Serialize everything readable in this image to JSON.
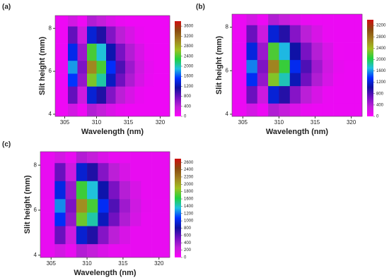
{
  "chart_data": [
    {
      "type": "heatmap",
      "panel_label": "(a)",
      "x_label": "Wavelength (nm)",
      "y_label": "Slit height (mm)",
      "xlim": [
        303.5,
        321.5
      ],
      "ylim": [
        3.9,
        8.6
      ],
      "xticks": [
        305,
        310,
        315,
        320
      ],
      "yticks": [
        4,
        6,
        8
      ],
      "x_edges": [
        303.5,
        305.5,
        307,
        308.5,
        310,
        311.5,
        313,
        314.5,
        316,
        317.5,
        319,
        320.5,
        321.5
      ],
      "y_edges": [
        3.9,
        4.5,
        5.3,
        5.9,
        6.5,
        7.3,
        8.1,
        8.6
      ],
      "z": [
        [
          100,
          270,
          105,
          450,
          360,
          225,
          135,
          100,
          100,
          100,
          100,
          100
        ],
        [
          100,
          810,
          315,
          1350,
          1080,
          675,
          405,
          250,
          135,
          100,
          100,
          100
        ],
        [
          100,
          1530,
          595,
          2550,
          2040,
          1275,
          765,
          470,
          255,
          130,
          100,
          100
        ],
        [
          120,
          1800,
          700,
          3000,
          2400,
          1500,
          900,
          550,
          300,
          150,
          100,
          100
        ],
        [
          100,
          1440,
          560,
          2400,
          1920,
          1200,
          720,
          440,
          240,
          120,
          100,
          100
        ],
        [
          100,
          810,
          315,
          1350,
          1080,
          675,
          405,
          250,
          135,
          100,
          100,
          100
        ],
        [
          100,
          270,
          105,
          450,
          360,
          225,
          135,
          100,
          100,
          100,
          100,
          100
        ]
      ],
      "clim": [
        0,
        3800
      ],
      "cticks": [
        0,
        400,
        800,
        1200,
        1600,
        2000,
        2400,
        2800,
        3200,
        3600
      ],
      "colormap": [
        "#ff00ff",
        "#c020d8",
        "#7010c0",
        "#1010a0",
        "#0030ff",
        "#20c0e0",
        "#20d040",
        "#a0c020",
        "#a08020",
        "#8a4a10",
        "#d01010"
      ]
    },
    {
      "type": "heatmap",
      "panel_label": "(b)",
      "x_label": "Wavelength (nm)",
      "y_label": "Slit height (mm)",
      "xlim": [
        303.5,
        321.5
      ],
      "ylim": [
        3.9,
        8.6
      ],
      "xticks": [
        305,
        310,
        315,
        320
      ],
      "yticks": [
        4,
        6,
        8
      ],
      "x_edges": [
        303.5,
        305.5,
        307,
        308.5,
        310,
        311.5,
        313,
        314.5,
        316,
        317.5,
        319,
        320.5,
        321.5
      ],
      "y_edges": [
        3.9,
        4.5,
        5.3,
        5.9,
        6.5,
        7.3,
        8.1,
        8.6
      ],
      "z": [
        [
          100,
          230,
          100,
          405,
          315,
          195,
          120,
          100,
          100,
          100,
          100,
          100
        ],
        [
          100,
          700,
          280,
          1215,
          945,
          585,
          360,
          215,
          115,
          100,
          100,
          100
        ],
        [
          100,
          1320,
          530,
          2300,
          1790,
          1100,
          680,
          410,
          220,
          110,
          100,
          100
        ],
        [
          110,
          1550,
          620,
          2700,
          2100,
          1300,
          800,
          480,
          260,
          130,
          100,
          100
        ],
        [
          100,
          1240,
          500,
          2160,
          1680,
          1040,
          640,
          385,
          210,
          105,
          100,
          100
        ],
        [
          100,
          700,
          280,
          1215,
          945,
          585,
          360,
          215,
          115,
          100,
          100,
          100
        ],
        [
          100,
          230,
          100,
          405,
          315,
          195,
          120,
          100,
          100,
          100,
          100,
          100
        ]
      ],
      "clim": [
        0,
        3400
      ],
      "cticks": [
        0,
        400,
        800,
        1200,
        1600,
        2000,
        2400,
        2800,
        3200
      ],
      "colormap": [
        "#ff00ff",
        "#c020d8",
        "#7010c0",
        "#1010a0",
        "#0030ff",
        "#20c0e0",
        "#20d040",
        "#a0c020",
        "#a08020",
        "#8a4a10",
        "#d01010"
      ]
    },
    {
      "type": "heatmap",
      "panel_label": "(c)",
      "x_label": "Wavelength (nm)",
      "y_label": "Slit height (mm)",
      "xlim": [
        303.5,
        321.5
      ],
      "ylim": [
        3.9,
        8.6
      ],
      "xticks": [
        305,
        310,
        315,
        320
      ],
      "yticks": [
        4,
        6,
        8
      ],
      "x_edges": [
        303.5,
        305.5,
        307,
        308.5,
        310,
        311.5,
        313,
        314.5,
        316,
        317.5,
        319,
        320.5,
        321.5
      ],
      "y_edges": [
        3.9,
        4.5,
        5.3,
        5.9,
        6.5,
        7.3,
        8.1,
        8.6
      ],
      "z": [
        [
          100,
          190,
          100,
          315,
          255,
          160,
          100,
          100,
          100,
          100,
          100,
          100
        ],
        [
          100,
          560,
          225,
          945,
          765,
          470,
          285,
          170,
          100,
          100,
          100,
          100
        ],
        [
          100,
          1060,
          425,
          1785,
          1445,
          890,
          535,
          325,
          180,
          100,
          100,
          100
        ],
        [
          100,
          1250,
          500,
          2100,
          1700,
          1050,
          630,
          380,
          210,
          110,
          100,
          100
        ],
        [
          100,
          1000,
          400,
          1680,
          1360,
          840,
          505,
          305,
          170,
          100,
          100,
          100
        ],
        [
          100,
          560,
          225,
          945,
          765,
          470,
          285,
          170,
          100,
          100,
          100,
          100
        ],
        [
          100,
          190,
          100,
          315,
          255,
          160,
          100,
          100,
          100,
          100,
          100,
          100
        ]
      ],
      "clim": [
        0,
        2700
      ],
      "cticks": [
        0,
        200,
        400,
        600,
        800,
        1000,
        1200,
        1400,
        1600,
        1800,
        2000,
        2200,
        2400,
        2600
      ],
      "colormap": [
        "#ff00ff",
        "#c020d8",
        "#7010c0",
        "#1010a0",
        "#0030ff",
        "#20c0e0",
        "#20d040",
        "#a0c020",
        "#a08020",
        "#8a4a10",
        "#d01010"
      ]
    }
  ]
}
